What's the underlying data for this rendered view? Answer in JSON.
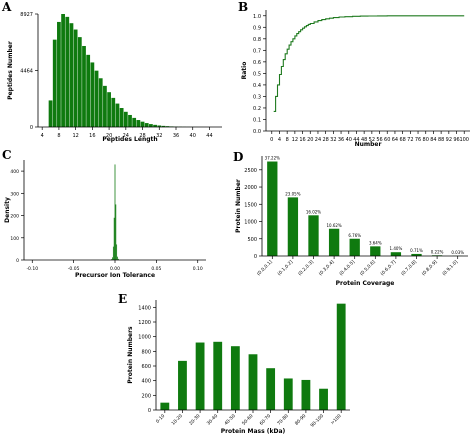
{
  "panel_labels": {
    "a": "A",
    "b": "B",
    "c": "C",
    "d": "D",
    "e": "E"
  },
  "chart_data": [
    {
      "id": "A",
      "type": "bar",
      "xlabel": "Peptides Length",
      "ylabel": "Peptides Number",
      "ylim": [
        0,
        8927
      ],
      "yticks": [
        0,
        4464,
        8927
      ],
      "xticks": [
        4,
        8,
        12,
        16,
        20,
        24,
        28,
        32,
        36,
        40,
        44
      ],
      "xlim": [
        3,
        47
      ],
      "x": [
        6,
        7,
        8,
        9,
        10,
        11,
        12,
        13,
        14,
        15,
        16,
        17,
        18,
        19,
        20,
        21,
        22,
        23,
        24,
        25,
        26,
        27,
        28,
        29,
        30,
        31,
        32,
        33,
        34,
        35,
        36,
        37,
        38,
        39,
        40,
        41,
        42,
        43,
        44
      ],
      "values": [
        2100,
        6900,
        8300,
        8927,
        8700,
        8200,
        7700,
        7100,
        6400,
        5700,
        5100,
        4450,
        3850,
        3250,
        2750,
        2300,
        1850,
        1500,
        1200,
        950,
        720,
        550,
        420,
        310,
        230,
        170,
        120,
        90,
        65,
        45,
        30,
        22,
        15,
        10,
        7,
        5,
        4,
        3,
        2
      ],
      "grid": false
    },
    {
      "id": "B",
      "type": "line",
      "xlabel": "Number",
      "ylabel": "Ratio",
      "ylim": [
        0,
        1.05
      ],
      "yticks": [
        "0.0",
        "0.1",
        "0.2",
        "0.3",
        "0.4",
        "0.5",
        "0.6",
        "0.7",
        "0.8",
        "0.9",
        "1.0"
      ],
      "xticks": [
        0,
        4,
        8,
        12,
        16,
        20,
        24,
        28,
        32,
        36,
        40,
        44,
        48,
        52,
        56,
        60,
        64,
        68,
        72,
        76,
        80,
        84,
        88,
        92,
        96,
        100
      ],
      "xlim": [
        -3,
        103
      ],
      "x": [
        1,
        2,
        3,
        4,
        5,
        6,
        7,
        8,
        9,
        10,
        11,
        12,
        13,
        14,
        15,
        16,
        17,
        18,
        19,
        20,
        22,
        24,
        26,
        28,
        30,
        32,
        35,
        38,
        42,
        46,
        50,
        55,
        60,
        70,
        80,
        90,
        100
      ],
      "values": [
        0.17,
        0.3,
        0.4,
        0.49,
        0.56,
        0.62,
        0.67,
        0.71,
        0.745,
        0.775,
        0.8,
        0.825,
        0.845,
        0.862,
        0.878,
        0.892,
        0.904,
        0.915,
        0.925,
        0.933,
        0.947,
        0.958,
        0.967,
        0.974,
        0.979,
        0.984,
        0.989,
        0.992,
        0.995,
        0.997,
        0.998,
        0.999,
        0.9995,
        1.0,
        1.0,
        1.0,
        1.0
      ],
      "grid": false
    },
    {
      "id": "C",
      "type": "bar",
      "xlabel": "Precursor Ion Tolerance",
      "ylabel": "Density",
      "ylim": [
        0,
        450
      ],
      "yticks": [
        0,
        100,
        200,
        300,
        400
      ],
      "xticks": [
        "-0.10",
        "-0.05",
        "0.00",
        "0.05",
        "0.10"
      ],
      "xtick_values": [
        -0.1,
        -0.05,
        0.0,
        0.05,
        0.1
      ],
      "xlim": [
        -0.11,
        0.11
      ],
      "x": [
        -0.004,
        -0.003,
        -0.002,
        -0.001,
        0.0,
        0.001,
        0.002,
        0.003,
        0.004
      ],
      "values": [
        4,
        12,
        60,
        190,
        430,
        250,
        70,
        15,
        5
      ],
      "grid": false
    },
    {
      "id": "D",
      "type": "bar",
      "xlabel": "Protein Coverage",
      "ylabel": "Protein Number",
      "ylim": [
        0,
        2900
      ],
      "yticks": [
        0,
        500,
        1000,
        1500,
        2000,
        2500
      ],
      "categories": [
        "(0.0,0.1]",
        "(0.1,0.2]",
        "(0.2,0.3]",
        "(0.3,0.4]",
        "(0.4,0.5]",
        "(0.5,0.6]",
        "(0.6,0.7]",
        "(0.7,0.8]",
        "(0.8,0.9]",
        "(0.9,1.0]"
      ],
      "values": [
        2740,
        1700,
        1180,
        790,
        500,
        280,
        110,
        60,
        20,
        5
      ],
      "data_labels": [
        "37.22%",
        "23.05%",
        "16.02%",
        "10.62%",
        "6.76%",
        "3.64%",
        "1.40%",
        "0.71%",
        "0.22%",
        "0.03%"
      ],
      "grid": false
    },
    {
      "id": "E",
      "type": "bar",
      "xlabel": "Protein Mass (kDa)",
      "ylabel": "Protein Numbers",
      "ylim": [
        0,
        1500
      ],
      "yticks": [
        0,
        200,
        400,
        600,
        800,
        1000,
        1200,
        1400
      ],
      "categories": [
        "0-10",
        "10-20",
        "20-30",
        "30-40",
        "40-50",
        "50-60",
        "60-70",
        "70-80",
        "80-90",
        "90-100",
        ">100"
      ],
      "values": [
        100,
        670,
        920,
        930,
        870,
        760,
        570,
        430,
        410,
        290,
        1450
      ],
      "grid": false
    }
  ],
  "colors": {
    "bar": "#0f7a0f",
    "line": "#1f7a1f",
    "axis": "#000000"
  }
}
